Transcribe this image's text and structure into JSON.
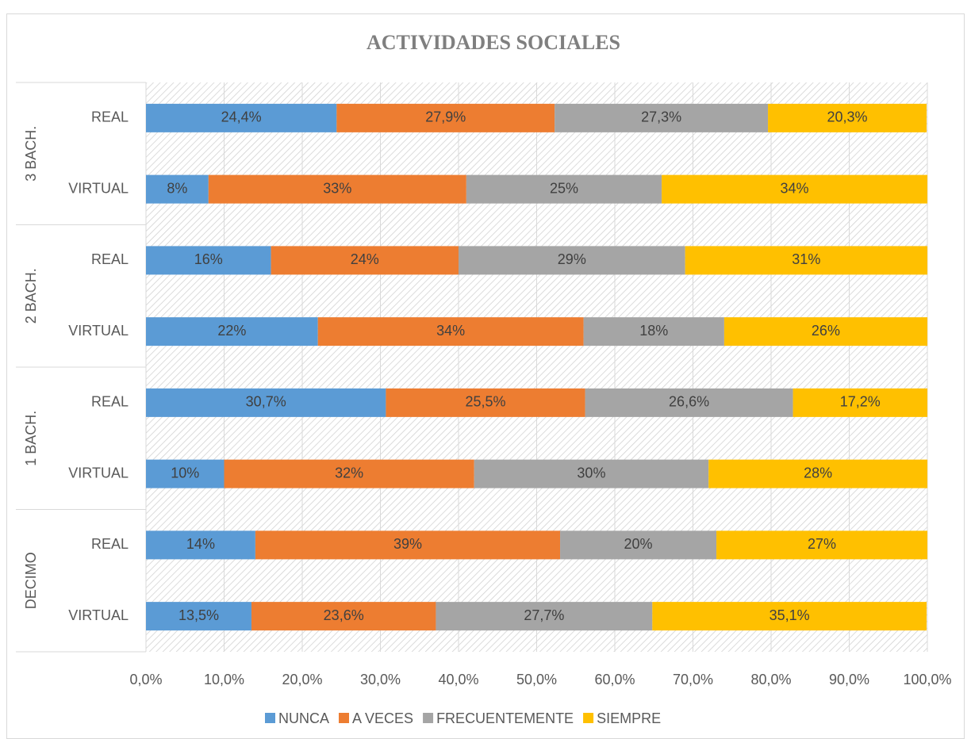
{
  "chart_data": {
    "type": "stacked_barh",
    "title": "ACTIVIDADES SOCIALES",
    "groups": [
      "3 BACH.",
      "2 BACH.",
      "1 BACH.",
      "DECIMO"
    ],
    "categories": [
      "REAL",
      "VIRTUAL",
      "REAL",
      "VIRTUAL",
      "REAL",
      "VIRTUAL",
      "REAL",
      "VIRTUAL"
    ],
    "series": [
      {
        "name": "NUNCA",
        "color": "#5b9bd5",
        "values": [
          24.4,
          8,
          16,
          22,
          30.7,
          10,
          14,
          13.5
        ],
        "value_labels": [
          "24,4%",
          "8%",
          "16%",
          "22%",
          "30,7%",
          "10%",
          "14%",
          "13,5%"
        ]
      },
      {
        "name": "A VECES",
        "color": "#ed7d31",
        "values": [
          27.9,
          33,
          24,
          34,
          25.5,
          32,
          39,
          23.6
        ],
        "value_labels": [
          "27,9%",
          "33%",
          "24%",
          "34%",
          "25,5%",
          "32%",
          "39%",
          "23,6%"
        ]
      },
      {
        "name": "FRECUENTEMENTE",
        "color": "#a5a5a5",
        "values": [
          27.3,
          25,
          29,
          18,
          26.6,
          30,
          20,
          27.7
        ],
        "value_labels": [
          "27,3%",
          "25%",
          "29%",
          "18%",
          "26,6%",
          "30%",
          "20%",
          "27,7%"
        ]
      },
      {
        "name": "SIEMPRE",
        "color": "#ffc000",
        "values": [
          20.3,
          34,
          31,
          26,
          17.2,
          28,
          27,
          35.1
        ],
        "value_labels": [
          "20,3%",
          "34%",
          "31%",
          "26%",
          "17,2%",
          "28%",
          "27%",
          "35,1%"
        ]
      }
    ],
    "xlim": [
      0,
      100
    ],
    "xticks": [
      {
        "value": 0,
        "label": "0,0%"
      },
      {
        "value": 10,
        "label": "10,0%"
      },
      {
        "value": 20,
        "label": "20,0%"
      },
      {
        "value": 30,
        "label": "30,0%"
      },
      {
        "value": 40,
        "label": "40,0%"
      },
      {
        "value": 50,
        "label": "50,0%"
      },
      {
        "value": 60,
        "label": "60,0%"
      },
      {
        "value": 70,
        "label": "70,0%"
      },
      {
        "value": 80,
        "label": "80,0%"
      },
      {
        "value": 90,
        "label": "90,0%"
      },
      {
        "value": 100,
        "label": "100,0%"
      }
    ],
    "grid": true,
    "legend": "bottom"
  }
}
